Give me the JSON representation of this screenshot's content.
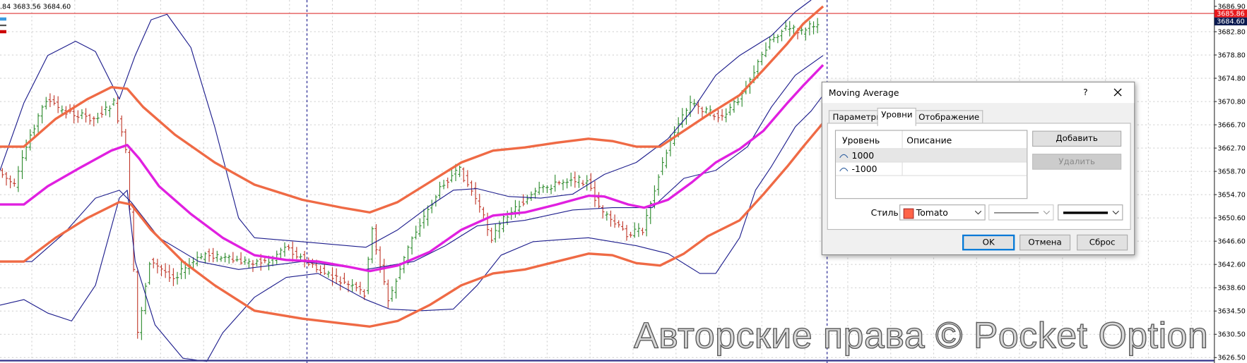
{
  "header": {
    "ohlc": ".84 3683.56 3684.60"
  },
  "price_axis": {
    "labels": [
      "3686.90",
      "3682.80",
      "3678.80",
      "3674.80",
      "3670.80",
      "3666.70",
      "3662.70",
      "3658.70",
      "3654.70",
      "3650.60",
      "3646.60",
      "3642.60",
      "3638.60",
      "3634.50",
      "3630.50",
      "3626.50"
    ],
    "current_ask": "3685.86",
    "current_bid": "3684.60"
  },
  "dialog": {
    "title": "Moving Average",
    "help": "?",
    "tabs": [
      "Параметры",
      "Уровни",
      "Отображение"
    ],
    "levels_table": {
      "headers": [
        "Уровень",
        "Описание"
      ],
      "rows": [
        {
          "level": "1000"
        },
        {
          "level": "-1000"
        }
      ]
    },
    "add_button": "Добавить",
    "delete_button": "Удалить",
    "style_label": "Стиль:",
    "color_name": "Tomato",
    "ok_button": "OK",
    "cancel_button": "Отмена",
    "reset_button": "Сброс"
  },
  "watermark": "Авторские права © Pocket Option"
}
